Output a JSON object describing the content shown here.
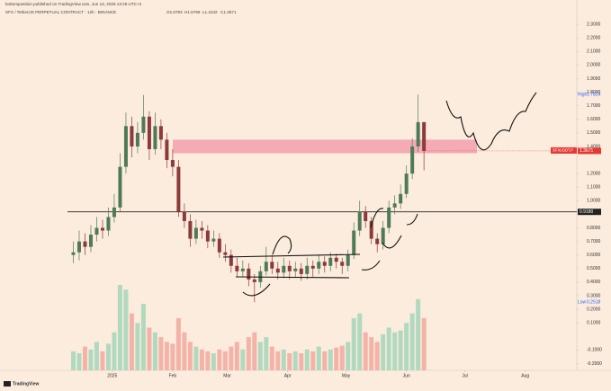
{
  "chart_data": {
    "type": "candlestick",
    "header": "bottomposition published on TradingView.com, Jun 13, 2025 13:29 UTC+2",
    "title": "SFX / TetherUS PERPETUAL CONTRACT · 12h · BINANCE",
    "legend": [
      "O1.5793",
      "H1.5795",
      "L1.2242",
      "C1.3671"
    ],
    "symbol": "SFXUSDT.P",
    "brand": "TradingView",
    "x": [
      -20,
      -17,
      -14,
      -11,
      -8,
      -5,
      -2,
      1,
      4,
      7,
      10,
      13,
      16,
      19,
      22,
      25,
      28,
      31,
      34,
      37,
      40,
      43,
      46,
      49,
      52,
      55,
      58,
      61,
      64,
      67,
      70,
      73,
      76,
      79,
      82,
      85,
      88,
      91,
      94,
      97,
      100,
      103,
      106,
      109,
      112,
      115,
      118,
      121,
      124,
      127,
      130,
      133,
      136,
      139,
      142,
      145,
      148,
      151,
      154,
      157,
      160
    ],
    "open": [
      0.6,
      0.62,
      0.7,
      0.66,
      0.75,
      0.8,
      0.78,
      0.88,
      0.95,
      1.25,
      1.55,
      1.4,
      1.5,
      1.62,
      1.38,
      1.55,
      1.45,
      1.3,
      1.25,
      0.92,
      0.85,
      0.72,
      0.8,
      0.78,
      0.7,
      0.72,
      0.62,
      0.6,
      0.52,
      0.48,
      0.5,
      0.42,
      0.4,
      0.48,
      0.55,
      0.5,
      0.47,
      0.52,
      0.48,
      0.5,
      0.46,
      0.52,
      0.5,
      0.55,
      0.52,
      0.58,
      0.55,
      0.52,
      0.6,
      0.78,
      0.92,
      0.85,
      0.72,
      0.68,
      0.8,
      0.95,
      0.98,
      1.05,
      1.2,
      1.4,
      1.5793
    ],
    "high": [
      0.7,
      0.78,
      0.76,
      0.82,
      0.88,
      0.86,
      0.95,
      1.05,
      1.35,
      1.65,
      1.62,
      1.58,
      1.78,
      1.66,
      1.65,
      1.6,
      1.5,
      1.38,
      1.3,
      0.98,
      0.9,
      0.86,
      0.85,
      0.82,
      0.78,
      0.76,
      0.68,
      0.64,
      0.58,
      0.56,
      0.54,
      0.46,
      0.52,
      0.66,
      0.6,
      0.55,
      0.58,
      0.56,
      0.55,
      0.54,
      0.58,
      0.56,
      0.6,
      0.59,
      0.62,
      0.61,
      0.58,
      0.64,
      0.84,
      1.0,
      0.96,
      0.88,
      0.76,
      0.85,
      1.0,
      1.04,
      1.12,
      1.26,
      1.46,
      1.7824,
      1.5795
    ],
    "low": [
      0.54,
      0.56,
      0.6,
      0.62,
      0.7,
      0.72,
      0.74,
      0.84,
      0.92,
      1.2,
      1.32,
      1.35,
      1.45,
      1.3,
      1.34,
      1.38,
      1.24,
      1.18,
      0.88,
      0.8,
      0.66,
      0.68,
      0.72,
      0.65,
      0.66,
      0.58,
      0.55,
      0.47,
      0.44,
      0.44,
      0.37,
      0.2518,
      0.36,
      0.45,
      0.46,
      0.42,
      0.43,
      0.42,
      0.44,
      0.41,
      0.42,
      0.44,
      0.46,
      0.47,
      0.48,
      0.5,
      0.46,
      0.48,
      0.57,
      0.74,
      0.8,
      0.68,
      0.62,
      0.64,
      0.76,
      0.9,
      0.94,
      1.02,
      1.16,
      1.36,
      1.2242
    ],
    "close": [
      0.62,
      0.7,
      0.66,
      0.75,
      0.8,
      0.78,
      0.88,
      0.95,
      1.25,
      1.55,
      1.4,
      1.5,
      1.62,
      1.38,
      1.55,
      1.45,
      1.3,
      1.25,
      0.92,
      0.85,
      0.72,
      0.8,
      0.78,
      0.7,
      0.72,
      0.62,
      0.6,
      0.52,
      0.48,
      0.5,
      0.42,
      0.4,
      0.48,
      0.55,
      0.5,
      0.47,
      0.52,
      0.48,
      0.5,
      0.46,
      0.52,
      0.5,
      0.55,
      0.52,
      0.58,
      0.55,
      0.52,
      0.6,
      0.78,
      0.92,
      0.85,
      0.72,
      0.68,
      0.8,
      0.95,
      0.98,
      1.05,
      1.2,
      1.4,
      1.5793,
      1.3671
    ],
    "volume": [
      20,
      18,
      25,
      22,
      30,
      20,
      28,
      40,
      90,
      85,
      60,
      50,
      70,
      45,
      40,
      35,
      30,
      28,
      55,
      40,
      30,
      25,
      22,
      20,
      18,
      22,
      20,
      25,
      30,
      22,
      35,
      40,
      30,
      35,
      25,
      20,
      22,
      18,
      20,
      18,
      22,
      20,
      25,
      20,
      22,
      24,
      26,
      30,
      55,
      60,
      40,
      35,
      30,
      38,
      45,
      40,
      42,
      50,
      60,
      75,
      55
    ],
    "up_color": "#4f7a5a",
    "down_color": "#8c3a3a",
    "volume_up_color": "#9fd4b8",
    "volume_down_color": "#f2a59b",
    "xlim": [
      -23,
      238
    ],
    "xticks": [
      {
        "value": 0,
        "label": "2025"
      },
      {
        "value": 31,
        "label": "Feb"
      },
      {
        "value": 59,
        "label": "Mar"
      },
      {
        "value": 90,
        "label": "Apr"
      },
      {
        "value": 120,
        "label": "May"
      },
      {
        "value": 151,
        "label": "Jun"
      },
      {
        "value": 181,
        "label": "Jul"
      },
      {
        "value": 212,
        "label": "Aug"
      }
    ],
    "ylim": [
      -0.25,
      2.4
    ],
    "yticks": [
      {
        "value": 2.3,
        "label": "2.3000"
      },
      {
        "value": 2.2,
        "label": "2.2000"
      },
      {
        "value": 2.1,
        "label": "2.1000"
      },
      {
        "value": 2.0,
        "label": "2.0000"
      },
      {
        "value": 1.9,
        "label": "1.9000"
      },
      {
        "value": 1.8,
        "label": "1.8000"
      },
      {
        "value": 1.7,
        "label": "1.7000"
      },
      {
        "value": 1.6,
        "label": "1.6000"
      },
      {
        "value": 1.5,
        "label": "1.5000"
      },
      {
        "value": 1.4,
        "label": "1.4000"
      },
      {
        "value": 1.2,
        "label": "1.2000"
      },
      {
        "value": 1.1,
        "label": "1.1000"
      },
      {
        "value": 1.0,
        "label": "1.0000"
      },
      {
        "value": 0.8,
        "label": "0.8000"
      },
      {
        "value": 0.7,
        "label": "0.7000"
      },
      {
        "value": 0.6,
        "label": "0.6000"
      },
      {
        "value": 0.5,
        "label": "0.5000"
      },
      {
        "value": 0.4,
        "label": "0.4000"
      },
      {
        "value": 0.3,
        "label": "0.3000"
      },
      {
        "value": 0.2,
        "label": "0.2000"
      },
      {
        "value": 0.1,
        "label": "0.1000"
      },
      {
        "value": -0.1,
        "label": "-0.1000"
      },
      {
        "value": -0.2,
        "label": "-0.2000"
      }
    ],
    "extremes": [
      {
        "name": "High",
        "value": 1.7824,
        "label": "1.7824"
      },
      {
        "name": "Low",
        "value": 0.2518,
        "label": "0.2518"
      }
    ],
    "level": {
      "value": 0.918,
      "label": "0.9180"
    },
    "last_price": {
      "value": 1.3671,
      "label": "1.3671"
    },
    "zone": {
      "ylim": [
        1.35,
        1.45
      ],
      "color": "#f2a0ad"
    }
  }
}
